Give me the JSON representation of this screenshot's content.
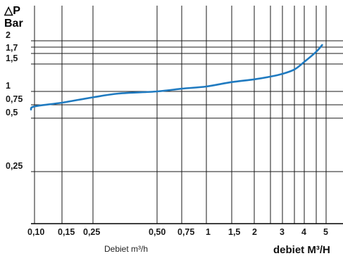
{
  "chart_data": {
    "type": "line",
    "title": "",
    "ylabel_symbol": "△P",
    "ylabel": "Bar",
    "xlabel": "Debiet m³/h",
    "xlabel_unit": "debiet M³/H",
    "y_ticks": [
      {
        "label": "2",
        "value": 2.0
      },
      {
        "label": "1,7",
        "value": 1.7
      },
      {
        "label": "1,5",
        "value": 1.5
      },
      {
        "label": "1",
        "value": 1.0
      },
      {
        "label": "0,75",
        "value": 0.75
      },
      {
        "label": "0,5",
        "value": 0.5
      },
      {
        "label": "0,25",
        "value": 0.25
      }
    ],
    "x_ticks": [
      {
        "label": "0,10",
        "value": 0.1
      },
      {
        "label": "0,15",
        "value": 0.15
      },
      {
        "label": "0,25",
        "value": 0.25
      },
      {
        "label": "0,50",
        "value": 0.5
      },
      {
        "label": "0,75",
        "value": 0.75
      },
      {
        "label": "1",
        "value": 1.0
      },
      {
        "label": "1,5",
        "value": 1.5
      },
      {
        "label": "2",
        "value": 2.0
      },
      {
        "label": "3",
        "value": 3.0
      },
      {
        "label": "4",
        "value": 4.0
      },
      {
        "label": "5",
        "value": 5.0
      }
    ],
    "x_gridlines": [
      0.1,
      0.15,
      0.25,
      0.5,
      0.75,
      1.0,
      1.5,
      2.0,
      2.5,
      3.0,
      3.5,
      4.0,
      4.5,
      5.0
    ],
    "y_gridlines": [
      2.0,
      1.85,
      1.7,
      1.5,
      1.0,
      0.75,
      0.5,
      0.25
    ],
    "series": [
      {
        "color": "#1f7ac0",
        "points": [
          {
            "x": 0.08,
            "y": 0.66
          },
          {
            "x": 0.1,
            "y": 0.72
          },
          {
            "x": 0.15,
            "y": 0.79
          },
          {
            "x": 0.25,
            "y": 0.89
          },
          {
            "x": 0.35,
            "y": 0.96
          },
          {
            "x": 0.5,
            "y": 1.0
          },
          {
            "x": 0.75,
            "y": 1.05
          },
          {
            "x": 1.0,
            "y": 1.09
          },
          {
            "x": 1.5,
            "y": 1.17
          },
          {
            "x": 2.0,
            "y": 1.22
          },
          {
            "x": 2.5,
            "y": 1.27
          },
          {
            "x": 3.0,
            "y": 1.32
          },
          {
            "x": 3.5,
            "y": 1.4
          },
          {
            "x": 4.0,
            "y": 1.54
          },
          {
            "x": 4.5,
            "y": 1.74
          },
          {
            "x": 4.8,
            "y": 1.9
          }
        ]
      }
    ]
  }
}
